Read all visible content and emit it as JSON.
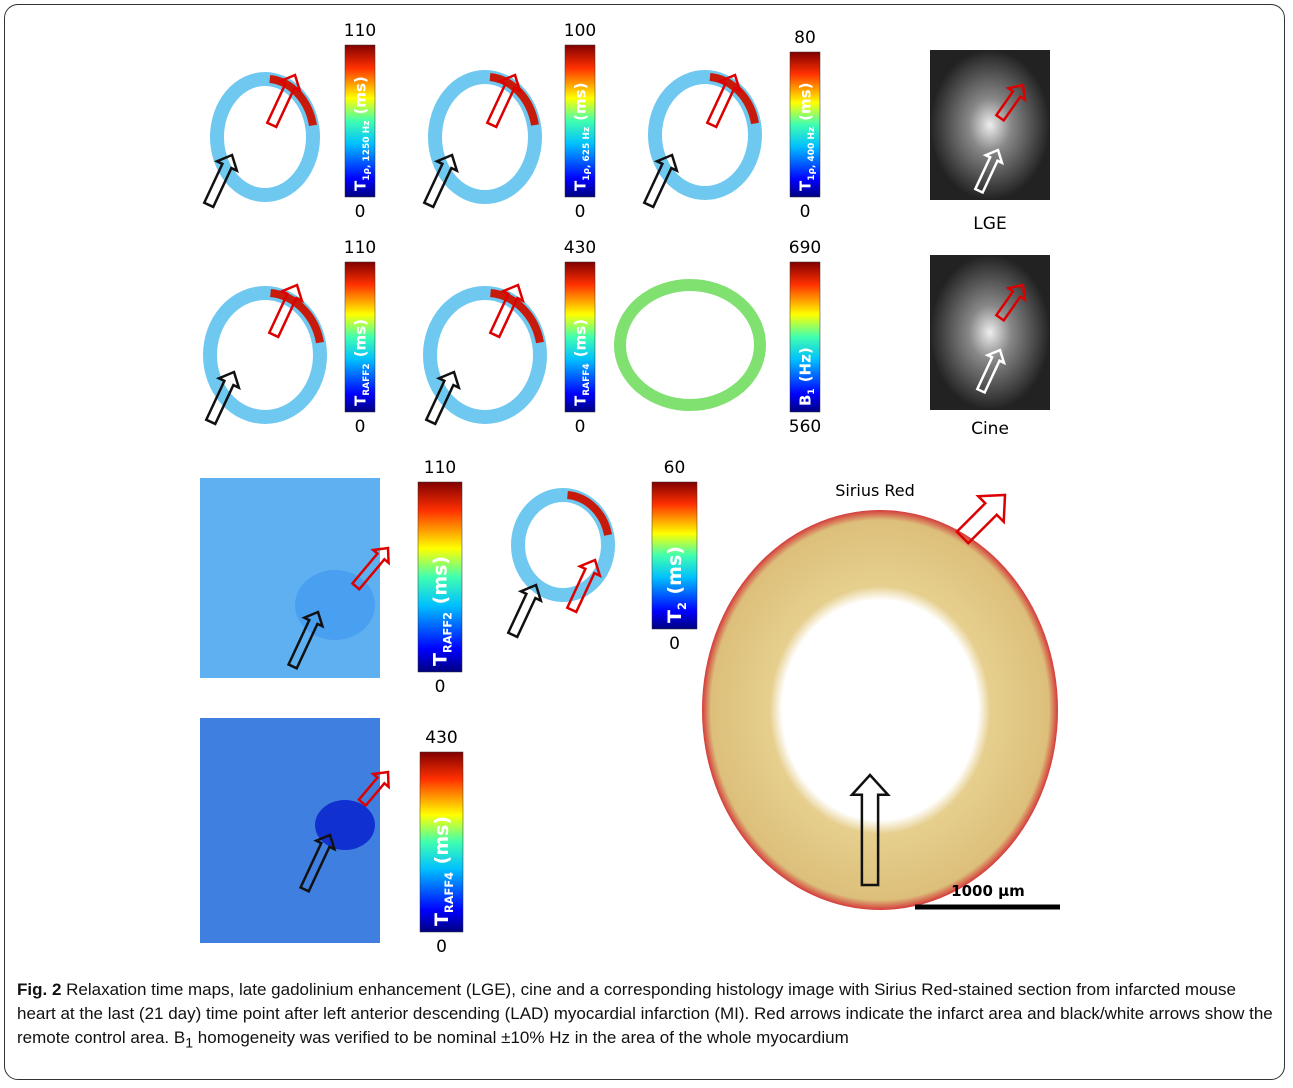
{
  "panels": [
    {
      "max": "110",
      "min": "0",
      "symbol": "T",
      "subscript": "1ρ, 1250 Hz",
      "unit": "(ms)"
    },
    {
      "max": "100",
      "min": "0",
      "symbol": "T",
      "subscript": "1ρ, 625 Hz",
      "unit": "(ms)"
    },
    {
      "max": "80",
      "min": "0",
      "symbol": "T",
      "subscript": "1ρ, 400 Hz",
      "unit": "(ms)"
    },
    {
      "max": "110",
      "min": "0",
      "symbol": "T",
      "subscript": "RAFF2",
      "unit": "(ms)"
    },
    {
      "max": "430",
      "min": "0",
      "symbol": "T",
      "subscript": "RAFF4",
      "unit": "(ms)"
    },
    {
      "max": "690",
      "min": "560",
      "symbol": "B",
      "subscript": "1",
      "unit": "(Hz)"
    },
    {
      "max": "110",
      "min": "0",
      "symbol": "T",
      "subscript": "RAFF2",
      "unit": "(ms)"
    },
    {
      "max": "60",
      "min": "0",
      "symbol": "T",
      "subscript": "2",
      "unit": "(ms)"
    },
    {
      "max": "430",
      "min": "0",
      "symbol": "T",
      "subscript": "RAFF4",
      "unit": "(ms)"
    }
  ],
  "images": [
    {
      "label": "LGE"
    },
    {
      "label": "Cine"
    }
  ],
  "histology": {
    "label": "Sirius Red",
    "scale_bar": "1000 µm"
  },
  "caption": {
    "title": "Fig. 2",
    "text_1": " Relaxation time maps, late gadolinium enhancement (LGE), cine and a corresponding histology image with Sirius Red-stained section from infarcted mouse heart at the last (21 day) time point after left anterior descending (LAD) myocardial infarction (MI). Red arrows indicate the infarct area and black/white arrows show the remote control area. ",
    "symbol": "B",
    "subscript": "1",
    "text_2": " homogeneity was verified to be nominal ±10% Hz in the area of the whole myocardium"
  }
}
